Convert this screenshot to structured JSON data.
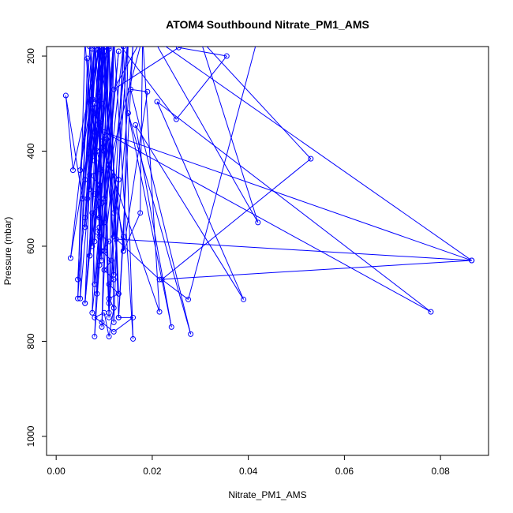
{
  "chart_data": {
    "type": "line",
    "title": "ATOM4 Southbound Nitrate_PM1_AMS",
    "xlabel": "Nitrate_PM1_AMS",
    "ylabel": "Pressure (mbar)",
    "xlim": [
      -0.002,
      0.09
    ],
    "ylim": [
      1040,
      180
    ],
    "y_reversed": true,
    "x_ticks": [
      0.0,
      0.02,
      0.04,
      0.06,
      0.08
    ],
    "x_tick_labels": [
      "0.00",
      "0.02",
      "0.04",
      "0.06",
      "0.08"
    ],
    "y_ticks": [
      200,
      400,
      600,
      800,
      1000
    ],
    "y_tick_labels": [
      "200",
      "400",
      "600",
      "800",
      "1000"
    ],
    "grid": false,
    "series": [
      {
        "color": "#0000ff",
        "markers": "open-circle",
        "points": [
          [
            0.0105,
            160
          ],
          [
            0.008,
            790
          ],
          [
            0.012,
            175
          ],
          [
            0.0095,
            770
          ],
          [
            0.011,
            170
          ],
          [
            0.0085,
            700
          ],
          [
            0.013,
            190
          ],
          [
            0.0075,
            740
          ],
          [
            0.009,
            180
          ],
          [
            0.011,
            750
          ],
          [
            0.01,
            200
          ],
          [
            0.006,
            720
          ],
          [
            0.011,
            185
          ],
          [
            0.012,
            760
          ],
          [
            0.014,
            175
          ],
          [
            0.009,
            640
          ],
          [
            0.0095,
            165
          ],
          [
            0.005,
            710
          ],
          [
            0.0065,
            205
          ],
          [
            0.008,
            680
          ],
          [
            0.012,
            170
          ],
          [
            0.011,
            740
          ],
          [
            0.015,
            160
          ],
          [
            0.01,
            610
          ],
          [
            0.008,
            175
          ],
          [
            0.006,
            560
          ],
          [
            0.009,
            190
          ],
          [
            0.007,
            620
          ],
          [
            0.011,
            180
          ],
          [
            0.013,
            700
          ],
          [
            0.01,
            175
          ],
          [
            0.012,
            660
          ],
          [
            0.016,
            175
          ],
          [
            0.013,
            750
          ],
          [
            0.011,
            185
          ],
          [
            0.008,
            590
          ],
          [
            0.01,
            190
          ],
          [
            0.0045,
            670
          ],
          [
            0.007,
            180
          ],
          [
            0.009,
            560
          ],
          [
            0.012,
            160
          ],
          [
            0.016,
            795
          ],
          [
            0.014,
            180
          ],
          [
            0.011,
            720
          ],
          [
            0.009,
            175
          ],
          [
            0.014,
            610
          ],
          [
            0.015,
            165
          ],
          [
            0.012,
            580
          ],
          [
            0.008,
            180
          ],
          [
            0.003,
            625
          ],
          [
            0.01,
            180
          ],
          [
            0.006,
            720
          ],
          [
            0.008,
            175
          ],
          [
            0.0045,
            710
          ],
          [
            0.006,
            170
          ],
          [
            0.009,
            540
          ],
          [
            0.012,
            165
          ],
          [
            0.01,
            500
          ],
          [
            0.0095,
            175
          ],
          [
            0.007,
            480
          ],
          [
            0.008,
            165
          ],
          [
            0.006,
            460
          ],
          [
            0.0075,
            185
          ],
          [
            0.005,
            440
          ],
          [
            0.009,
            180
          ],
          [
            0.0035,
            440
          ],
          [
            0.002,
            283
          ],
          [
            0.0055,
            500
          ],
          [
            0.008,
            300
          ],
          [
            0.009,
            580
          ],
          [
            0.009,
            285
          ],
          [
            0.0095,
            630
          ],
          [
            0.0075,
            310
          ],
          [
            0.007,
            620
          ],
          [
            0.0105,
            375
          ],
          [
            0.012,
            530
          ],
          [
            0.013,
            460
          ],
          [
            0.011,
            430
          ],
          [
            0.018,
            160
          ],
          [
            0.0175,
            530
          ],
          [
            0.014,
            610
          ],
          [
            0.019,
            275
          ],
          [
            0.0155,
            270
          ],
          [
            0.028,
            785
          ],
          [
            0.015,
            320
          ],
          [
            0.024,
            770
          ],
          [
            0.0165,
            345
          ],
          [
            0.039,
            712
          ],
          [
            0.021,
            296
          ],
          [
            0.078,
            738
          ],
          [
            0.01,
            360
          ],
          [
            0.0865,
            630
          ],
          [
            0.0125,
            585
          ],
          [
            0.0215,
            670
          ],
          [
            0.0865,
            630
          ],
          [
            0.02,
            160
          ],
          [
            0.042,
            550
          ],
          [
            0.03,
            165
          ],
          [
            0.053,
            416
          ],
          [
            0.022,
            670
          ],
          [
            0.0275,
            712
          ],
          [
            0.042,
            160
          ],
          [
            0.012,
            160
          ],
          [
            0.025,
            333
          ],
          [
            0.0355,
            200
          ],
          [
            0.0255,
            182
          ],
          [
            0.012,
            270
          ],
          [
            0.018,
            160
          ],
          [
            0.0215,
            738
          ],
          [
            0.01,
            400
          ],
          [
            0.014,
            580
          ],
          [
            0.013,
            750
          ],
          [
            0.016,
            750
          ],
          [
            0.012,
            780
          ],
          [
            0.0095,
            760
          ],
          [
            0.008,
            750
          ],
          [
            0.01,
            740
          ],
          [
            0.011,
            790
          ],
          [
            0.012,
            730
          ],
          [
            0.011,
            710
          ],
          [
            0.013,
            700
          ],
          [
            0.011,
            680
          ],
          [
            0.012,
            670
          ],
          [
            0.01,
            650
          ],
          [
            0.0115,
            630
          ],
          [
            0.0095,
            610
          ],
          [
            0.011,
            590
          ],
          [
            0.0085,
            570
          ],
          [
            0.01,
            550
          ],
          [
            0.0075,
            530
          ],
          [
            0.0095,
            510
          ],
          [
            0.008,
            490
          ],
          [
            0.009,
            470
          ],
          [
            0.007,
            450
          ],
          [
            0.0095,
            440
          ],
          [
            0.0085,
            400
          ],
          [
            0.01,
            380
          ],
          [
            0.008,
            360
          ],
          [
            0.009,
            340
          ],
          [
            0.008,
            320
          ],
          [
            0.0095,
            300
          ],
          [
            0.0075,
            290
          ],
          [
            0.009,
            160
          ],
          [
            0.008,
            420
          ],
          [
            0.01,
            160
          ],
          [
            0.0065,
            500
          ],
          [
            0.0085,
            160
          ],
          [
            0.006,
            540
          ],
          [
            0.011,
            160
          ],
          [
            0.0075,
            600
          ]
        ]
      }
    ]
  }
}
